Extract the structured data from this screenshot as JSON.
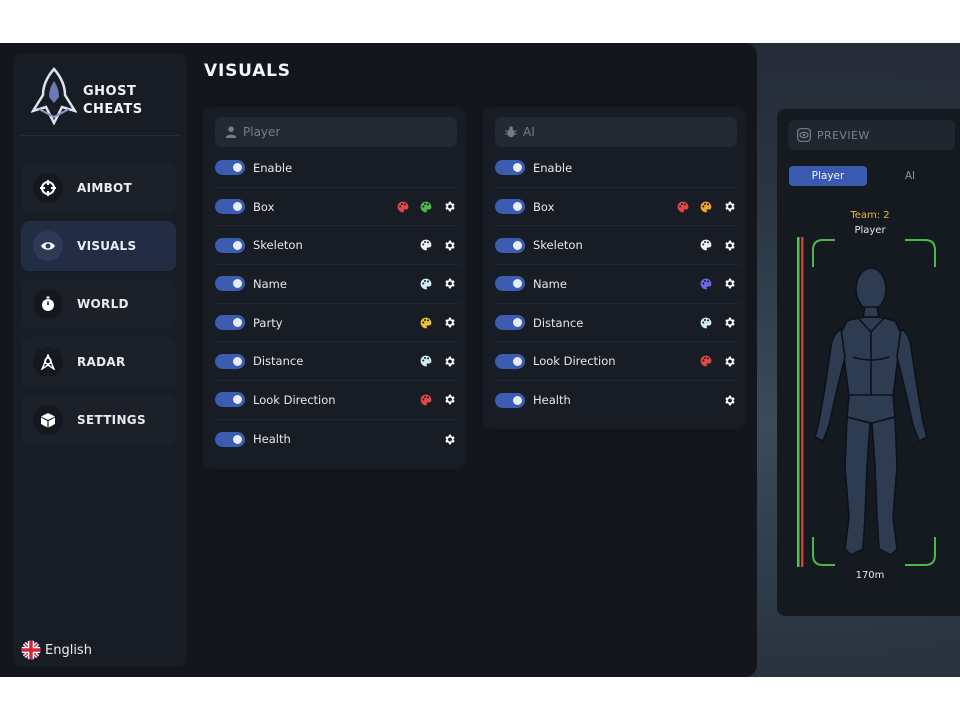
{
  "brand": {
    "line1": "GHOST",
    "line2": "CHEATS"
  },
  "nav": [
    {
      "label": "AIMBOT",
      "icon": "crosshair-icon",
      "active": false
    },
    {
      "label": "VISUALS",
      "icon": "eye-icon",
      "active": true
    },
    {
      "label": "WORLD",
      "icon": "stopwatch-icon",
      "active": false
    },
    {
      "label": "RADAR",
      "icon": "radar-icon",
      "active": false
    },
    {
      "label": "SETTINGS",
      "icon": "cube-icon",
      "active": false
    }
  ],
  "language": {
    "label": "English",
    "icon": "uk-flag-icon"
  },
  "page": {
    "title": "VISUALS"
  },
  "player_panel": {
    "header": "Player",
    "header_icon": "user-icon",
    "rows": [
      {
        "label": "Enable",
        "enabled": true,
        "colors": [],
        "settings": false
      },
      {
        "label": "Box",
        "enabled": true,
        "colors": [
          "#e0484a",
          "#4cb84a"
        ],
        "settings": true
      },
      {
        "label": "Skeleton",
        "enabled": true,
        "colors": [
          "#f2f2f2"
        ],
        "settings": true
      },
      {
        "label": "Name",
        "enabled": true,
        "colors": [
          "#cfeaf4"
        ],
        "settings": true
      },
      {
        "label": "Party",
        "enabled": true,
        "colors": [
          "#e9c030"
        ],
        "settings": true
      },
      {
        "label": "Distance",
        "enabled": true,
        "colors": [
          "#cfeaf4"
        ],
        "settings": true
      },
      {
        "label": "Look Direction",
        "enabled": true,
        "colors": [
          "#e0484a"
        ],
        "settings": true
      },
      {
        "label": "Health",
        "enabled": true,
        "colors": [],
        "settings": true
      }
    ]
  },
  "ai_panel": {
    "header": "AI",
    "header_icon": "bug-icon",
    "rows": [
      {
        "label": "Enable",
        "enabled": true,
        "colors": [],
        "settings": false
      },
      {
        "label": "Box",
        "enabled": true,
        "colors": [
          "#e0484a",
          "#f0a030"
        ],
        "settings": true
      },
      {
        "label": "Skeleton",
        "enabled": true,
        "colors": [
          "#f2f2f2"
        ],
        "settings": true
      },
      {
        "label": "Name",
        "enabled": true,
        "colors": [
          "#6a6ae8"
        ],
        "settings": true
      },
      {
        "label": "Distance",
        "enabled": true,
        "colors": [
          "#cfeaf4"
        ],
        "settings": true
      },
      {
        "label": "Look Direction",
        "enabled": true,
        "colors": [
          "#e0484a"
        ],
        "settings": true
      },
      {
        "label": "Health",
        "enabled": true,
        "colors": [],
        "settings": true
      }
    ]
  },
  "preview": {
    "header": "PREVIEW",
    "header_icon": "eye-icon",
    "tabs": [
      {
        "label": "Player",
        "active": true
      },
      {
        "label": "AI",
        "active": false
      }
    ],
    "team": "Team: 2",
    "entity": "Player",
    "distance": "170m",
    "box_color": "#4cb84a",
    "health_fraction": 1.0
  },
  "colors": {
    "accent": "#3a5ab0",
    "background": "#13161d",
    "team_text": "#e9b949"
  }
}
